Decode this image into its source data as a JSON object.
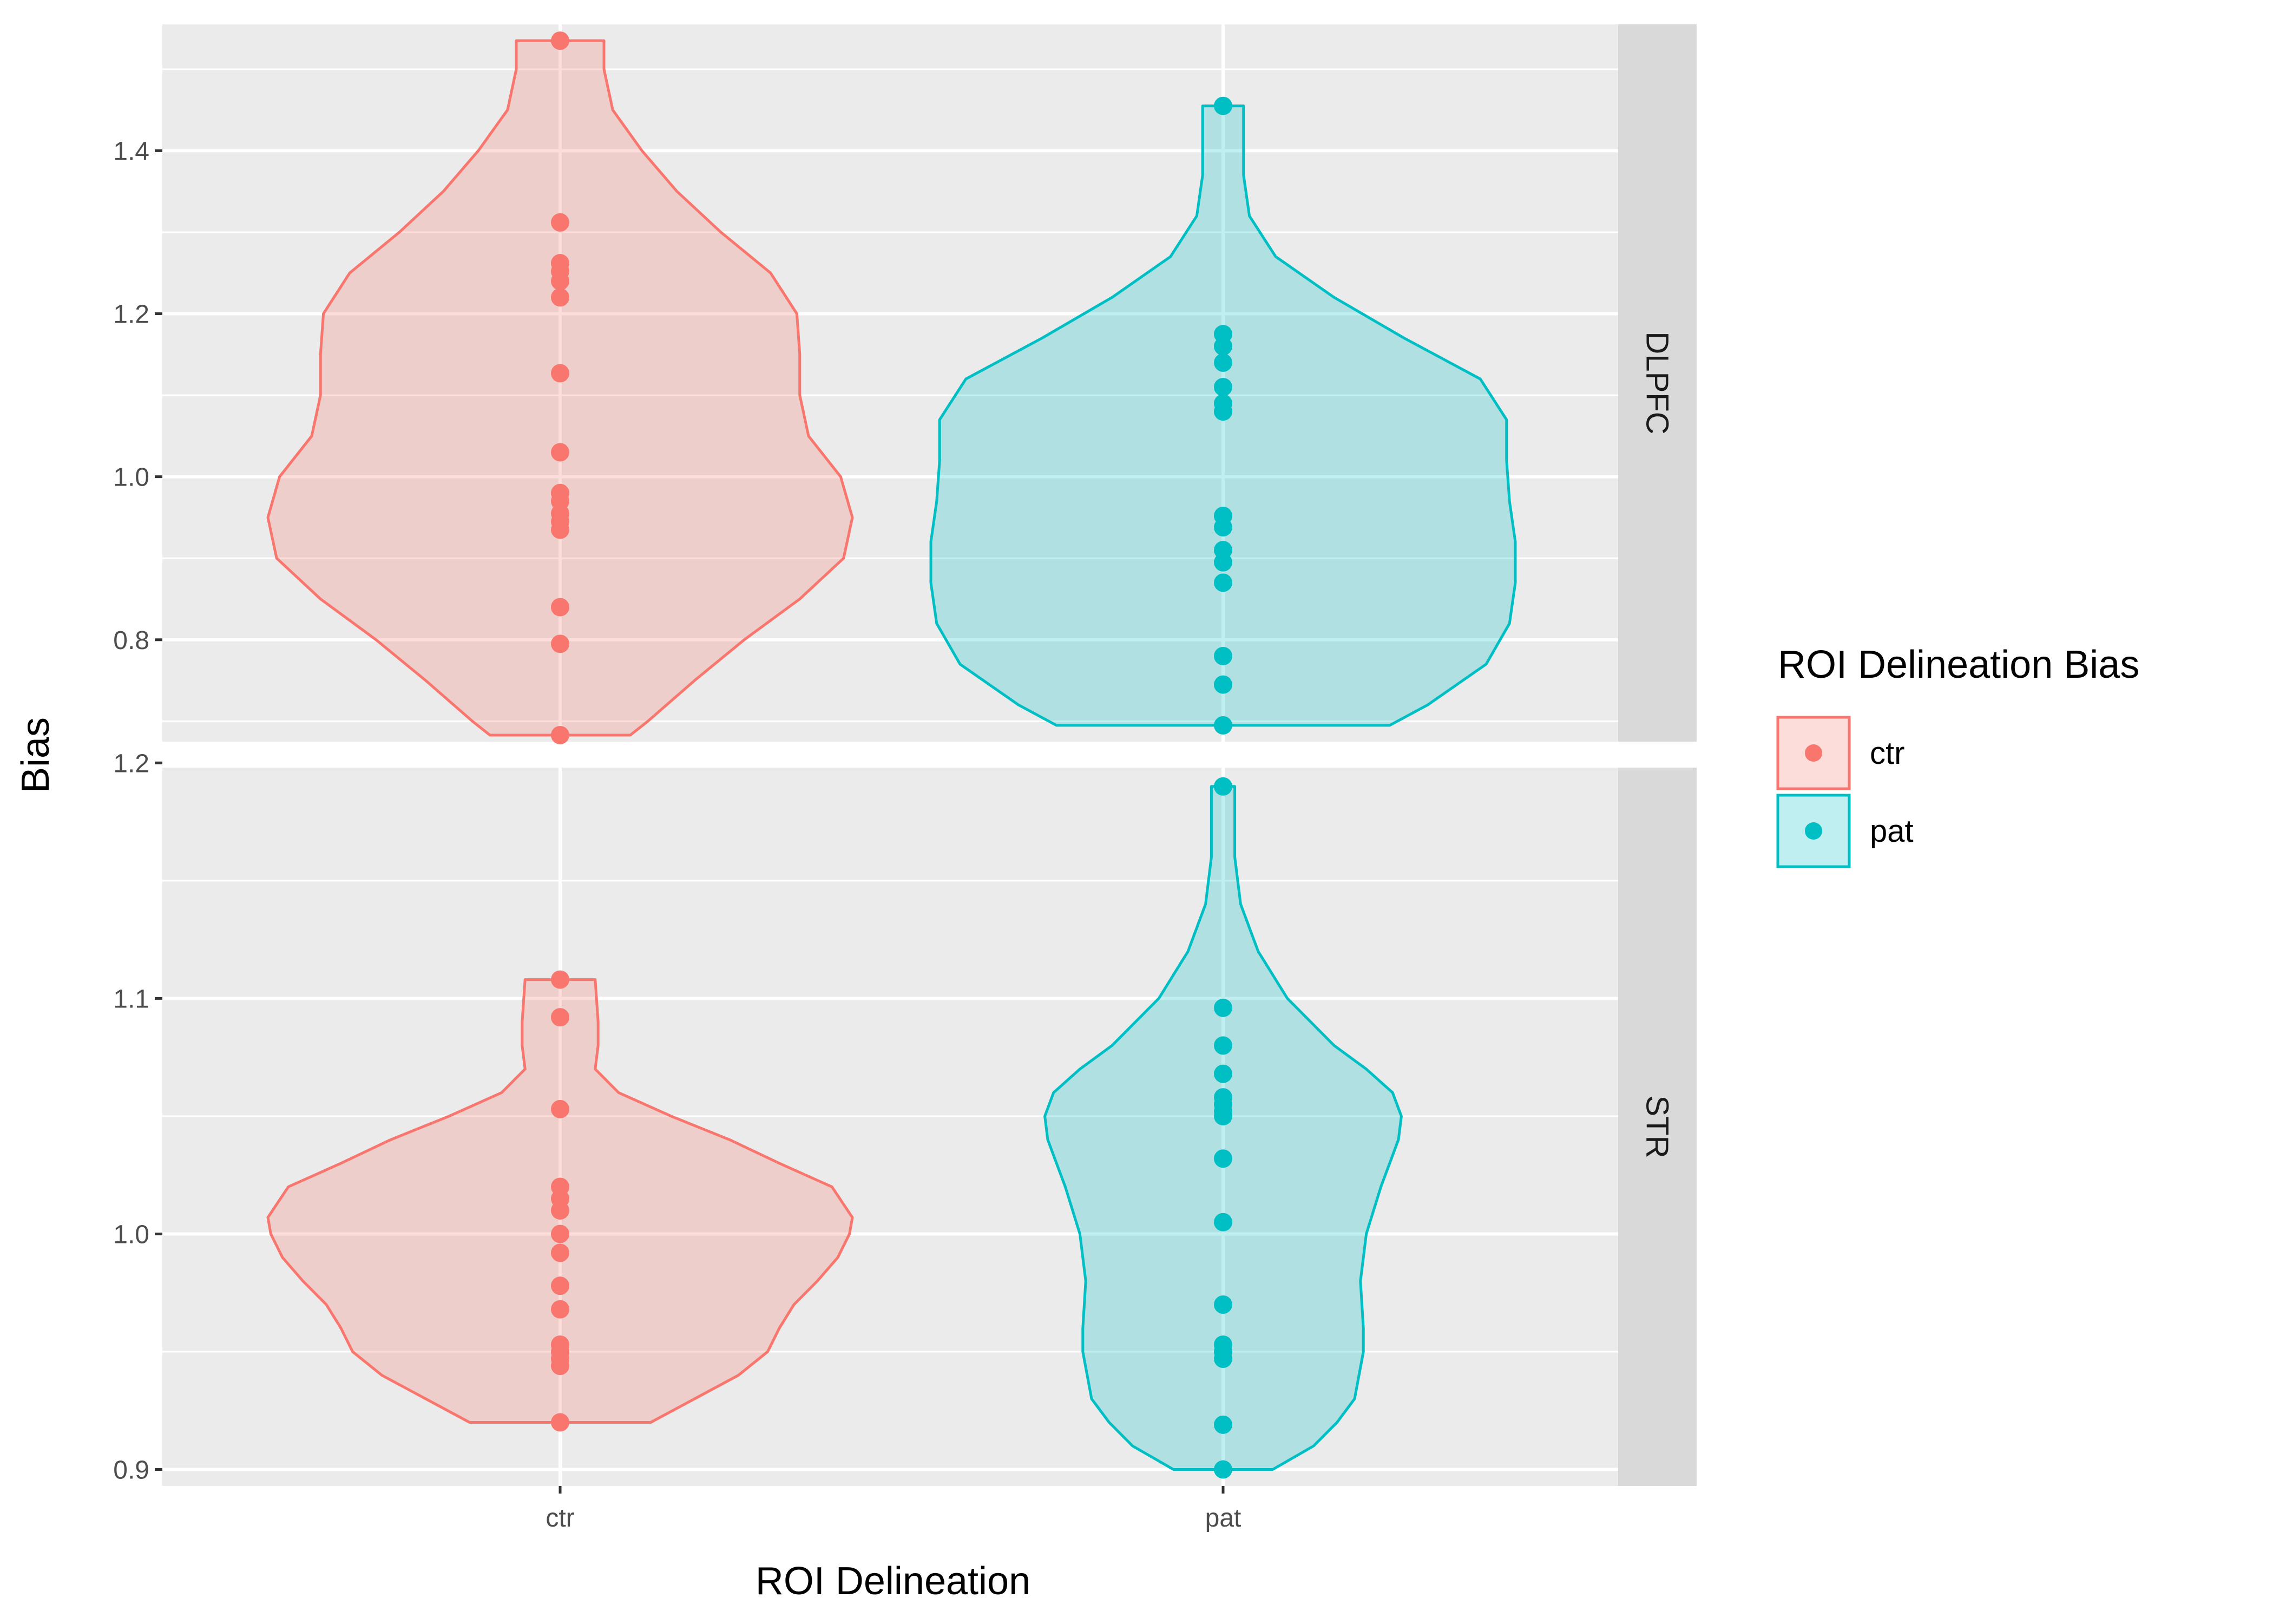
{
  "chart_data": {
    "type": "violin",
    "xlabel": "ROI Delineation",
    "ylabel": "Bias",
    "categories": [
      "ctr",
      "pat"
    ],
    "legend": {
      "title": "ROI Delineation Bias",
      "placement": "right",
      "entries": [
        {
          "label": "ctr",
          "color": "#F8766D"
        },
        {
          "label": "pat",
          "color": "#00BFC4"
        }
      ]
    },
    "colors": {
      "ctr": "#F8766D",
      "pat": "#00BFC4"
    },
    "panel_background": "#EBEBEB",
    "strip_background": "#D9D9D9",
    "grid": true,
    "facets": [
      {
        "label": "DLPFC",
        "ylim": [
          0.675,
          1.555
        ],
        "yticks": [
          0.8,
          1.0,
          1.2,
          1.4
        ],
        "ytick_labels": [
          "0.8",
          "1.0",
          "1.2",
          "1.4"
        ],
        "series": [
          {
            "name": "ctr",
            "points": [
              1.535,
              1.312,
              1.262,
              1.252,
              1.24,
              1.22,
              1.127,
              1.03,
              0.98,
              0.97,
              0.955,
              0.945,
              0.935,
              0.84,
              0.795,
              0.683
            ],
            "violin": [
              [
                0.683,
                0.24
              ],
              [
                0.7,
                0.3
              ],
              [
                0.75,
                0.46
              ],
              [
                0.8,
                0.63
              ],
              [
                0.85,
                0.82
              ],
              [
                0.9,
                0.97
              ],
              [
                0.95,
                1.0
              ],
              [
                1.0,
                0.96
              ],
              [
                1.05,
                0.85
              ],
              [
                1.1,
                0.82
              ],
              [
                1.15,
                0.82
              ],
              [
                1.2,
                0.81
              ],
              [
                1.25,
                0.72
              ],
              [
                1.3,
                0.55
              ],
              [
                1.35,
                0.4
              ],
              [
                1.4,
                0.28
              ],
              [
                1.45,
                0.18
              ],
              [
                1.5,
                0.15
              ],
              [
                1.535,
                0.15
              ]
            ]
          },
          {
            "name": "pat",
            "points": [
              1.455,
              1.175,
              1.16,
              1.14,
              1.11,
              1.09,
              1.08,
              0.952,
              0.938,
              0.91,
              0.895,
              0.87,
              0.78,
              0.745,
              0.695
            ],
            "violin": [
              [
                0.695,
                0.57
              ],
              [
                0.72,
                0.7
              ],
              [
                0.77,
                0.9
              ],
              [
                0.82,
                0.98
              ],
              [
                0.87,
                1.0
              ],
              [
                0.92,
                1.0
              ],
              [
                0.97,
                0.98
              ],
              [
                1.02,
                0.97
              ],
              [
                1.07,
                0.97
              ],
              [
                1.12,
                0.88
              ],
              [
                1.17,
                0.62
              ],
              [
                1.22,
                0.38
              ],
              [
                1.27,
                0.18
              ],
              [
                1.32,
                0.09
              ],
              [
                1.37,
                0.07
              ],
              [
                1.42,
                0.07
              ],
              [
                1.455,
                0.07
              ]
            ]
          }
        ]
      },
      {
        "label": "STR",
        "ylim": [
          0.893,
          1.198
        ],
        "yticks": [
          0.9,
          1.0,
          1.1,
          1.2
        ],
        "ytick_labels": [
          "0.9",
          "1.0",
          "1.1",
          "1.2"
        ],
        "series": [
          {
            "name": "ctr",
            "points": [
              1.108,
              1.092,
              1.053,
              1.02,
              1.015,
              1.01,
              1.0,
              0.992,
              0.978,
              0.968,
              0.953,
              0.95,
              0.947,
              0.944,
              0.92
            ],
            "violin": [
              [
                0.92,
                0.31
              ],
              [
                0.93,
                0.46
              ],
              [
                0.94,
                0.61
              ],
              [
                0.95,
                0.71
              ],
              [
                0.96,
                0.75
              ],
              [
                0.97,
                0.8
              ],
              [
                0.98,
                0.88
              ],
              [
                0.99,
                0.95
              ],
              [
                1.0,
                0.99
              ],
              [
                1.007,
                1.0
              ],
              [
                1.02,
                0.93
              ],
              [
                1.03,
                0.75
              ],
              [
                1.04,
                0.58
              ],
              [
                1.05,
                0.38
              ],
              [
                1.06,
                0.2
              ],
              [
                1.07,
                0.12
              ],
              [
                1.08,
                0.13
              ],
              [
                1.09,
                0.13
              ],
              [
                1.108,
                0.12
              ]
            ]
          },
          {
            "name": "pat",
            "points": [
              1.19,
              1.096,
              1.08,
              1.068,
              1.058,
              1.055,
              1.052,
              1.05,
              1.032,
              1.005,
              0.97,
              0.953,
              0.95,
              0.947,
              0.919,
              0.9
            ],
            "violin": [
              [
                0.9,
                0.17
              ],
              [
                0.91,
                0.31
              ],
              [
                0.92,
                0.39
              ],
              [
                0.93,
                0.45
              ],
              [
                0.95,
                0.48
              ],
              [
                0.96,
                0.48
              ],
              [
                0.98,
                0.47
              ],
              [
                1.0,
                0.49
              ],
              [
                1.02,
                0.54
              ],
              [
                1.04,
                0.6
              ],
              [
                1.05,
                0.61
              ],
              [
                1.06,
                0.58
              ],
              [
                1.07,
                0.49
              ],
              [
                1.08,
                0.38
              ],
              [
                1.1,
                0.22
              ],
              [
                1.12,
                0.12
              ],
              [
                1.14,
                0.06
              ],
              [
                1.16,
                0.04
              ],
              [
                1.19,
                0.04
              ]
            ]
          }
        ]
      }
    ]
  }
}
